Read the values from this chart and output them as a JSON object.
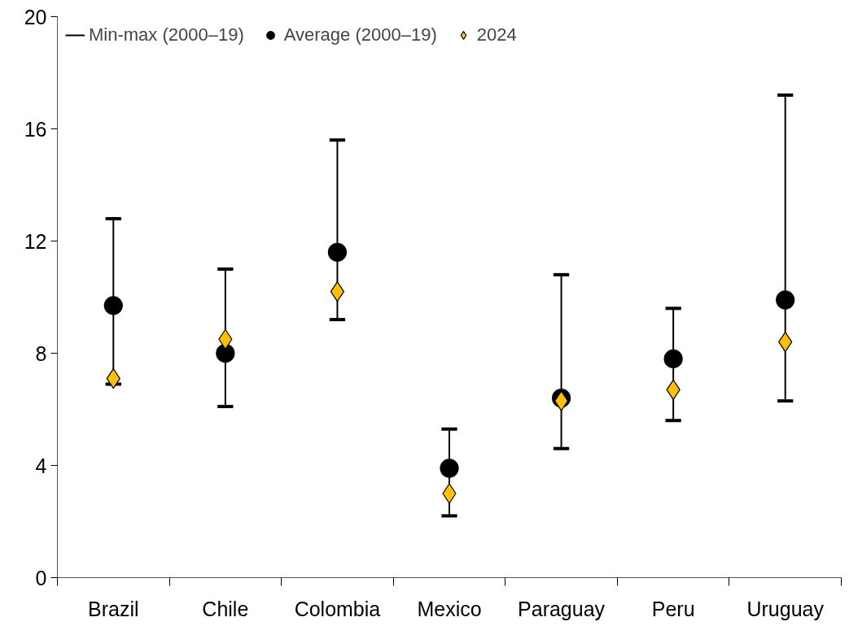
{
  "chart_data": {
    "type": "scatter",
    "categories": [
      "Brazil",
      "Chile",
      "Colombia",
      "Mexico",
      "Paraguay",
      "Peru",
      "Uruguay"
    ],
    "series": [
      {
        "name": "Average (2000–19)",
        "marker": "circle",
        "color": "#000000",
        "values": [
          9.7,
          8.0,
          11.6,
          3.9,
          6.4,
          7.8,
          9.9
        ],
        "errors": [
          [
            6.9,
            12.8
          ],
          [
            6.1,
            11.0
          ],
          [
            9.2,
            15.6
          ],
          [
            2.2,
            5.3
          ],
          [
            4.6,
            10.8
          ],
          [
            5.6,
            9.6
          ],
          [
            6.3,
            17.2
          ]
        ]
      },
      {
        "name": "2024",
        "marker": "diamond",
        "color": "#ffc000",
        "values": [
          7.1,
          8.5,
          10.2,
          3.0,
          6.3,
          6.7,
          8.4
        ]
      }
    ],
    "annotations": [
      "Min-max (2000–19)"
    ],
    "ylim": [
      0,
      20
    ],
    "yticks": [
      0,
      4,
      8,
      12,
      16,
      20
    ],
    "grid": false,
    "legend": "top left"
  }
}
